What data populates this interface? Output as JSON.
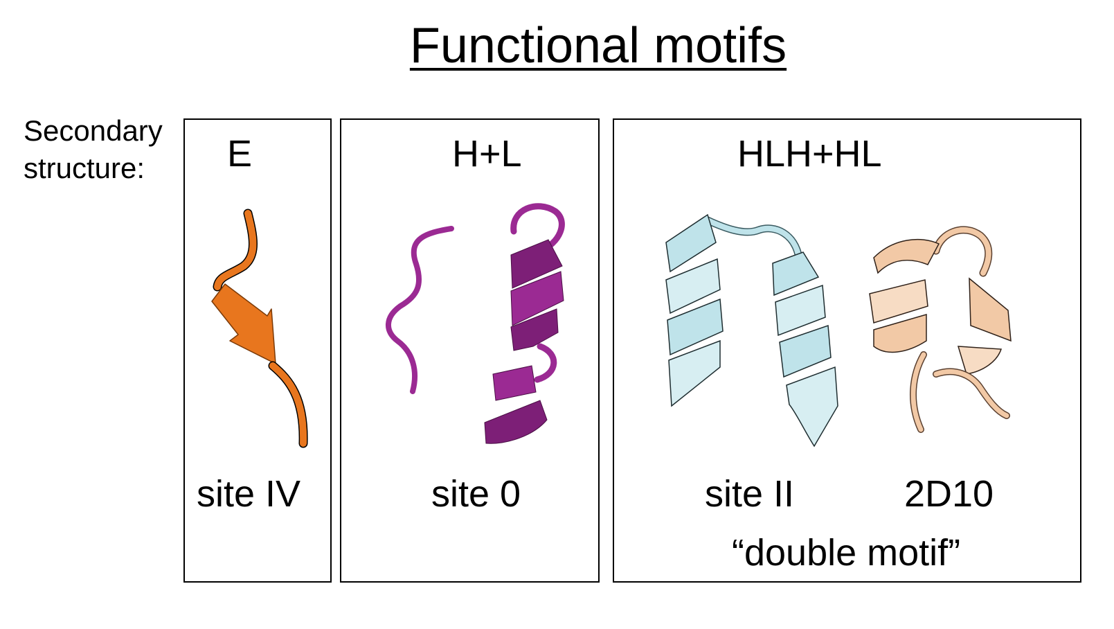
{
  "title": "Functional motifs",
  "secondary_label_line1": "Secondary",
  "secondary_label_line2": "structure:",
  "panels": [
    {
      "structure": "E",
      "names": [
        "site IV"
      ],
      "colors": [
        "#e8761e"
      ]
    },
    {
      "structure": "H+L",
      "names": [
        "site 0"
      ],
      "colors": [
        "#9b2a93"
      ]
    },
    {
      "structure": "HLH+HL",
      "names": [
        "site II",
        "2D10"
      ],
      "note": "“double motif”",
      "colors": [
        "#bfe3ea",
        "#f2c9a6"
      ]
    }
  ]
}
